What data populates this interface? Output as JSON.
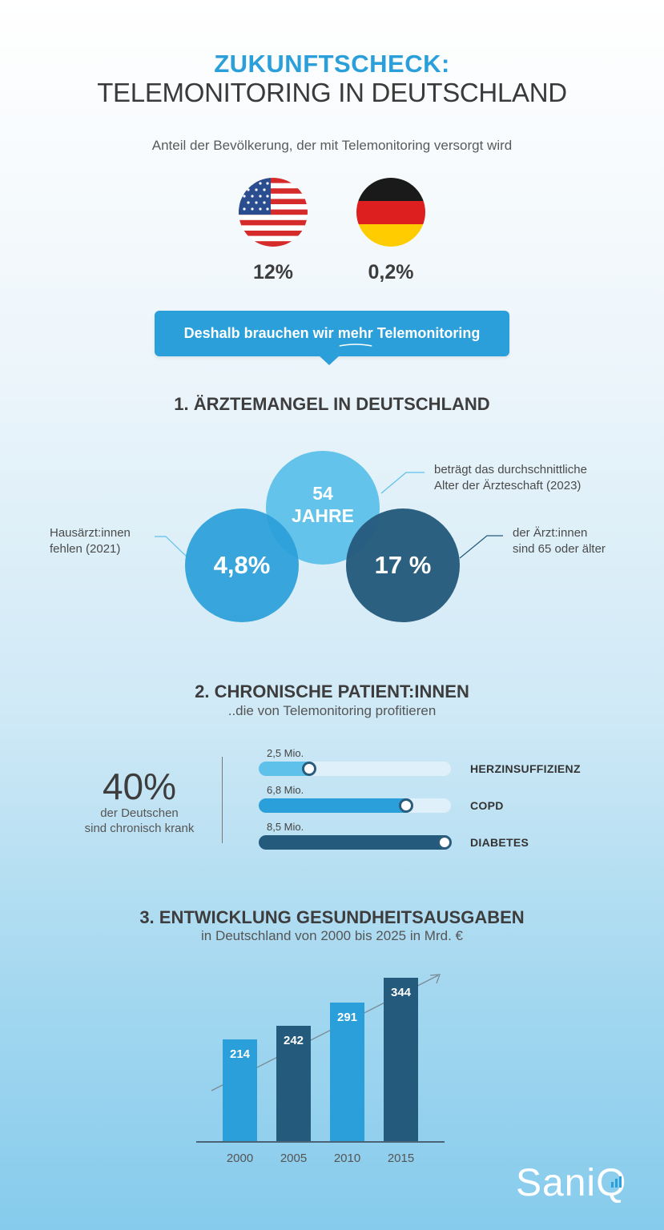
{
  "header": {
    "title_line1": "ZUKUNFTSCHECK:",
    "title_line2": "TELEMONITORING IN DEUTSCHLAND",
    "subtitle": "Anteil der Bevölkerung, der mit Telemonitoring versorgt wird"
  },
  "flags": [
    {
      "icon": "usa-flag-icon",
      "value": "12%"
    },
    {
      "icon": "germany-flag-icon",
      "value": "0,2%"
    }
  ],
  "callout": {
    "before": "Deshalb brauchen wir",
    "emph": "mehr",
    "after": "Telemonitoring"
  },
  "section1": {
    "title": "1. ÄRZTEMANGEL IN DEUTSCHLAND",
    "circles": [
      {
        "value": "4,8%",
        "label_line1": "Hausärzt:innen",
        "label_line2": "fehlen (2021)",
        "color": "#2b9fd9"
      },
      {
        "value_line1": "54",
        "value_line2": "JAHRE",
        "label_line1": "beträgt das durchschnittliche",
        "label_line2": "Alter der Ärzteschaft (2023)",
        "color": "#5ec1ea"
      },
      {
        "value": "17 %",
        "label_line1": "der Ärzt:innen",
        "label_line2": "sind 65 oder älter",
        "color": "#245a7c"
      }
    ]
  },
  "section2": {
    "title": "2. CHRONISCHE PATIENT:INNEN",
    "subtitle": "..die von Telemonitoring profitieren",
    "stat_value": "40%",
    "stat_line1": "der Deutschen",
    "stat_line2": "sind chronisch krank",
    "bars": [
      {
        "caption": "2,5 Mio.",
        "name": "HERZINSUFFIZIENZ",
        "value": 2.5,
        "color": "#5ec1ea"
      },
      {
        "caption": "6,8 Mio.",
        "name": "COPD",
        "value": 6.8,
        "color": "#2b9fd9"
      },
      {
        "caption": "8,5 Mio.",
        "name": "DIABETES",
        "value": 8.5,
        "color": "#245a7c"
      }
    ],
    "bar_max": 8.5
  },
  "section3": {
    "title": "3. ENTWICKLUNG GESUNDHEITSAUSGABEN",
    "subtitle": "in Deutschland von 2000 bis 2025 in Mrd. €"
  },
  "chart_data": {
    "type": "bar",
    "title": "3. ENTWICKLUNG GESUNDHEITSAUSGABEN",
    "subtitle": "in Deutschland von 2000 bis 2025 in Mrd. €",
    "categories": [
      "2000",
      "2005",
      "2010",
      "2015"
    ],
    "values": [
      214,
      242,
      291,
      344
    ],
    "colors": [
      "#2b9fd9",
      "#245a7c",
      "#2b9fd9",
      "#245a7c"
    ],
    "xlabel": "",
    "ylabel": "",
    "grid": false,
    "trend_arrow": true
  },
  "brand": {
    "logo_text": "Sani",
    "logo_letter": "Q"
  }
}
